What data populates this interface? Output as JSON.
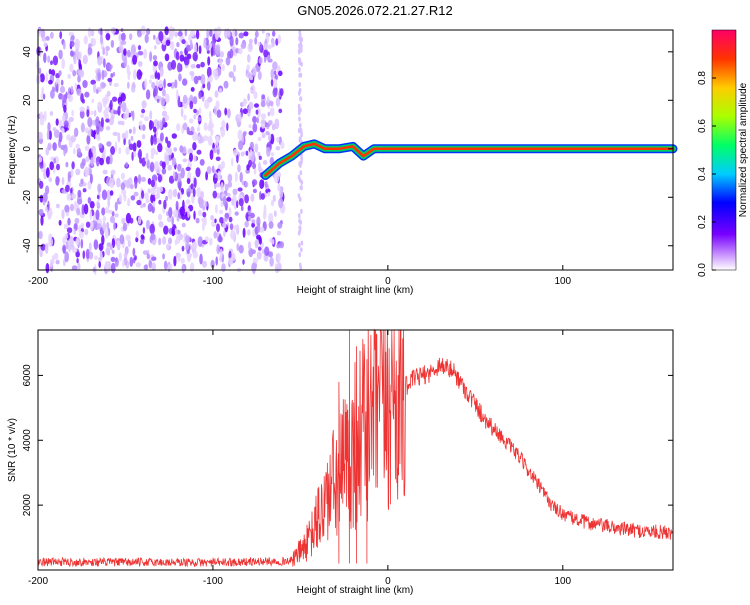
{
  "title": "GN05.2026.072.21.27.R12",
  "chart_data": [
    {
      "type": "heatmap",
      "xlabel": "Height of straight line (km)",
      "ylabel": "Frequency (Hz)",
      "xlim": [
        -200,
        163
      ],
      "ylim": [
        -50,
        49
      ],
      "xticks": [
        -200,
        -100,
        0,
        100
      ],
      "yticks": [
        -40,
        -20,
        0,
        20,
        40
      ],
      "noise_region": [
        -200,
        -60
      ],
      "noise_stripe_x": -50,
      "signal_track": [
        {
          "x": -70,
          "f": -11
        },
        {
          "x": -62,
          "f": -6
        },
        {
          "x": -55,
          "f": -3
        },
        {
          "x": -48,
          "f": 1
        },
        {
          "x": -42,
          "f": 2
        },
        {
          "x": -36,
          "f": 0
        },
        {
          "x": -28,
          "f": 0
        },
        {
          "x": -20,
          "f": 1
        },
        {
          "x": -14,
          "f": -3
        },
        {
          "x": -8,
          "f": 0
        },
        {
          "x": 0,
          "f": 0
        },
        {
          "x": 80,
          "f": 0
        },
        {
          "x": 163,
          "f": 0
        }
      ],
      "colorbar": {
        "label": "Normalized spectral amplitude",
        "range": [
          0,
          1
        ],
        "ticks": [
          0.0,
          0.2,
          0.4,
          0.6,
          0.8
        ]
      },
      "grid": false
    },
    {
      "type": "line",
      "xlabel": "Height of straight line (km)",
      "ylabel": "SNR (10 * v/v)",
      "xlim": [
        -200,
        163
      ],
      "ylim": [
        0,
        7400
      ],
      "xticks": [
        -200,
        -100,
        0,
        100
      ],
      "yticks": [
        2000,
        4000,
        6000
      ],
      "color": "#ee3333",
      "envelope": [
        {
          "x": -200,
          "y": 250
        },
        {
          "x": -100,
          "y": 230
        },
        {
          "x": -55,
          "y": 280
        },
        {
          "x": -45,
          "y": 900
        },
        {
          "x": -35,
          "y": 2200
        },
        {
          "x": -25,
          "y": 3200
        },
        {
          "x": -15,
          "y": 4300
        },
        {
          "x": -5,
          "y": 5000
        },
        {
          "x": 5,
          "y": 5400
        },
        {
          "x": 15,
          "y": 5900
        },
        {
          "x": 25,
          "y": 6100
        },
        {
          "x": 30,
          "y": 6350
        },
        {
          "x": 38,
          "y": 6100
        },
        {
          "x": 45,
          "y": 5500
        },
        {
          "x": 55,
          "y": 4700
        },
        {
          "x": 65,
          "y": 4100
        },
        {
          "x": 75,
          "y": 3500
        },
        {
          "x": 85,
          "y": 2700
        },
        {
          "x": 95,
          "y": 1900
        },
        {
          "x": 105,
          "y": 1600
        },
        {
          "x": 115,
          "y": 1450
        },
        {
          "x": 130,
          "y": 1300
        },
        {
          "x": 145,
          "y": 1200
        },
        {
          "x": 163,
          "y": 1150
        }
      ],
      "spikes": [
        {
          "x": -22,
          "y": 7400
        },
        {
          "x": -18,
          "y": 6900
        },
        {
          "x": -12,
          "y": 6500
        },
        {
          "x": -28,
          "y": 5800
        }
      ],
      "grid": false
    }
  ]
}
